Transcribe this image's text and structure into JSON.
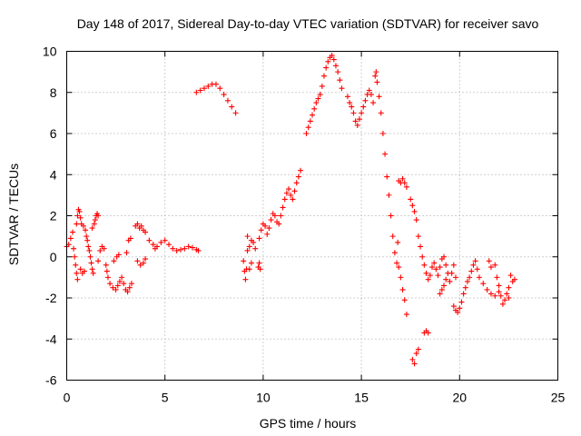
{
  "chart_data": {
    "type": "scatter",
    "title": "Day 148 of 2017, Sidereal Day-to-day VTEC variation (SDTVAR) for receiver savo",
    "xlabel": "GPS time / hours",
    "ylabel": "SDTVAR / TECUs",
    "xlim": [
      0,
      25
    ],
    "ylim": [
      -6,
      10
    ],
    "xticks": [
      0,
      5,
      10,
      15,
      20,
      25
    ],
    "yticks": [
      -6,
      -4,
      -2,
      0,
      2,
      4,
      6,
      8,
      10
    ],
    "grid": true,
    "marker": "+",
    "color": "#ff0000",
    "series": [
      {
        "name": "savo",
        "points": [
          [
            0.0,
            0.5
          ],
          [
            0.1,
            0.6
          ],
          [
            0.2,
            0.9
          ],
          [
            0.3,
            1.2
          ],
          [
            0.35,
            0.4
          ],
          [
            0.4,
            0.0
          ],
          [
            0.45,
            -0.4
          ],
          [
            0.5,
            -0.8
          ],
          [
            0.55,
            -1.1
          ],
          [
            0.5,
            1.6
          ],
          [
            0.55,
            2.0
          ],
          [
            0.6,
            2.3
          ],
          [
            0.65,
            2.2
          ],
          [
            0.7,
            1.9
          ],
          [
            0.75,
            1.6
          ],
          [
            0.7,
            -0.6
          ],
          [
            0.8,
            -0.8
          ],
          [
            0.9,
            -0.7
          ],
          [
            0.85,
            1.5
          ],
          [
            0.95,
            1.3
          ],
          [
            1.0,
            1.0
          ],
          [
            1.05,
            0.8
          ],
          [
            1.1,
            0.5
          ],
          [
            1.15,
            0.3
          ],
          [
            1.2,
            0.0
          ],
          [
            1.25,
            -0.3
          ],
          [
            1.3,
            -0.6
          ],
          [
            1.35,
            -0.8
          ],
          [
            1.3,
            1.4
          ],
          [
            1.4,
            1.6
          ],
          [
            1.45,
            1.8
          ],
          [
            1.5,
            2.0
          ],
          [
            1.55,
            2.1
          ],
          [
            1.6,
            2.0
          ],
          [
            1.6,
            -0.2
          ],
          [
            1.7,
            0.3
          ],
          [
            1.8,
            0.5
          ],
          [
            1.9,
            0.4
          ],
          [
            2.0,
            -0.4
          ],
          [
            2.05,
            -0.7
          ],
          [
            2.1,
            -1.0
          ],
          [
            2.2,
            -1.3
          ],
          [
            2.35,
            -1.5
          ],
          [
            2.5,
            -1.6
          ],
          [
            2.6,
            -1.4
          ],
          [
            2.7,
            -1.2
          ],
          [
            2.8,
            -1.0
          ],
          [
            2.9,
            -1.3
          ],
          [
            3.0,
            -1.6
          ],
          [
            3.1,
            -1.7
          ],
          [
            3.2,
            -1.5
          ],
          [
            3.3,
            -1.3
          ],
          [
            3.05,
            0.2
          ],
          [
            3.15,
            0.8
          ],
          [
            3.25,
            0.9
          ],
          [
            2.4,
            -0.2
          ],
          [
            2.55,
            0.0
          ],
          [
            2.65,
            0.1
          ],
          [
            3.5,
            1.5
          ],
          [
            3.6,
            1.6
          ],
          [
            3.7,
            1.4
          ],
          [
            3.8,
            1.5
          ],
          [
            3.9,
            1.3
          ],
          [
            4.0,
            1.2
          ],
          [
            3.6,
            -0.2
          ],
          [
            3.75,
            -0.4
          ],
          [
            3.9,
            -0.3
          ],
          [
            4.0,
            -0.1
          ],
          [
            4.2,
            0.8
          ],
          [
            4.4,
            0.6
          ],
          [
            4.5,
            0.4
          ],
          [
            4.6,
            0.5
          ],
          [
            4.8,
            0.7
          ],
          [
            5.0,
            0.8
          ],
          [
            5.2,
            0.6
          ],
          [
            5.4,
            0.4
          ],
          [
            5.6,
            0.3
          ],
          [
            5.8,
            0.35
          ],
          [
            6.0,
            0.4
          ],
          [
            6.2,
            0.5
          ],
          [
            6.4,
            0.45
          ],
          [
            6.6,
            0.35
          ],
          [
            6.7,
            0.3
          ],
          [
            6.6,
            8.0
          ],
          [
            6.8,
            8.1
          ],
          [
            7.0,
            8.2
          ],
          [
            7.2,
            8.3
          ],
          [
            7.4,
            8.4
          ],
          [
            7.6,
            8.4
          ],
          [
            7.8,
            8.2
          ],
          [
            8.0,
            7.9
          ],
          [
            8.2,
            7.6
          ],
          [
            8.4,
            7.3
          ],
          [
            8.6,
            7.0
          ],
          [
            9.0,
            -0.2
          ],
          [
            9.05,
            -0.7
          ],
          [
            9.1,
            -1.1
          ],
          [
            9.15,
            -0.6
          ],
          [
            9.2,
            0.3
          ],
          [
            9.3,
            0.5
          ],
          [
            9.4,
            0.8
          ],
          [
            9.5,
            0.7
          ],
          [
            9.6,
            0.4
          ],
          [
            9.3,
            -0.6
          ],
          [
            9.4,
            -0.3
          ],
          [
            9.2,
            1.0
          ],
          [
            9.75,
            -0.5
          ],
          [
            9.8,
            -0.3
          ],
          [
            9.85,
            -0.6
          ],
          [
            9.8,
            0.9
          ],
          [
            9.9,
            1.3
          ],
          [
            10.0,
            1.6
          ],
          [
            10.1,
            1.5
          ],
          [
            10.2,
            1.1
          ],
          [
            10.3,
            1.4
          ],
          [
            10.4,
            1.8
          ],
          [
            10.5,
            2.1
          ],
          [
            10.6,
            2.0
          ],
          [
            10.7,
            1.7
          ],
          [
            10.8,
            1.6
          ],
          [
            10.9,
            2.0
          ],
          [
            11.0,
            2.4
          ],
          [
            11.1,
            2.8
          ],
          [
            11.2,
            3.1
          ],
          [
            11.3,
            3.3
          ],
          [
            11.4,
            3.0
          ],
          [
            11.5,
            2.8
          ],
          [
            11.6,
            3.2
          ],
          [
            11.7,
            3.6
          ],
          [
            11.8,
            3.9
          ],
          [
            11.9,
            4.2
          ],
          [
            12.2,
            6.0
          ],
          [
            12.3,
            6.3
          ],
          [
            12.4,
            6.6
          ],
          [
            12.5,
            6.9
          ],
          [
            12.6,
            7.2
          ],
          [
            12.7,
            7.5
          ],
          [
            12.8,
            7.7
          ],
          [
            12.9,
            7.9
          ],
          [
            13.0,
            8.3
          ],
          [
            13.1,
            8.8
          ],
          [
            13.2,
            9.2
          ],
          [
            13.3,
            9.5
          ],
          [
            13.4,
            9.7
          ],
          [
            13.5,
            9.8
          ],
          [
            13.6,
            9.6
          ],
          [
            13.7,
            9.3
          ],
          [
            13.8,
            9.0
          ],
          [
            13.9,
            8.6
          ],
          [
            14.0,
            8.2
          ],
          [
            14.3,
            7.8
          ],
          [
            14.4,
            7.5
          ],
          [
            14.5,
            7.3
          ],
          [
            14.6,
            7.0
          ],
          [
            14.7,
            6.6
          ],
          [
            14.8,
            6.4
          ],
          [
            14.9,
            6.7
          ],
          [
            15.0,
            7.0
          ],
          [
            15.1,
            7.3
          ],
          [
            15.2,
            7.6
          ],
          [
            15.3,
            7.9
          ],
          [
            15.4,
            8.1
          ],
          [
            15.5,
            7.9
          ],
          [
            15.6,
            7.5
          ],
          [
            15.7,
            8.8
          ],
          [
            15.75,
            9.0
          ],
          [
            15.8,
            8.5
          ],
          [
            15.9,
            7.8
          ],
          [
            16.0,
            7.0
          ],
          [
            16.1,
            6.0
          ],
          [
            16.2,
            5.0
          ],
          [
            16.3,
            3.9
          ],
          [
            16.4,
            3.0
          ],
          [
            16.5,
            2.0
          ],
          [
            16.6,
            1.0
          ],
          [
            16.7,
            0.2
          ],
          [
            16.8,
            -0.3
          ],
          [
            16.85,
            0.7
          ],
          [
            16.9,
            -0.5
          ],
          [
            16.9,
            3.7
          ],
          [
            17.0,
            3.6
          ],
          [
            17.1,
            3.8
          ],
          [
            17.2,
            3.6
          ],
          [
            17.3,
            3.4
          ],
          [
            17.0,
            -1.0
          ],
          [
            17.1,
            -1.6
          ],
          [
            17.2,
            -2.1
          ],
          [
            17.3,
            -2.8
          ],
          [
            17.5,
            2.8
          ],
          [
            17.6,
            2.5
          ],
          [
            17.7,
            2.2
          ],
          [
            17.8,
            1.8
          ],
          [
            17.9,
            1.0
          ],
          [
            18.0,
            0.5
          ],
          [
            18.1,
            0.0
          ],
          [
            18.2,
            -0.4
          ],
          [
            18.3,
            -0.8
          ],
          [
            18.4,
            -1.1
          ],
          [
            18.5,
            -0.9
          ],
          [
            18.6,
            -0.5
          ],
          [
            18.7,
            -0.3
          ],
          [
            18.8,
            -0.6
          ],
          [
            18.9,
            -0.9
          ],
          [
            19.0,
            -0.5
          ],
          [
            19.1,
            -0.1
          ],
          [
            19.2,
            0.0
          ],
          [
            19.3,
            -0.4
          ],
          [
            19.4,
            -0.8
          ],
          [
            17.6,
            -5.0
          ],
          [
            17.7,
            -5.2
          ],
          [
            17.8,
            -4.7
          ],
          [
            17.9,
            -4.5
          ],
          [
            18.2,
            -3.7
          ],
          [
            18.3,
            -3.6
          ],
          [
            18.4,
            -3.7
          ],
          [
            19.0,
            -1.8
          ],
          [
            19.1,
            -1.6
          ],
          [
            19.2,
            -1.4
          ],
          [
            19.3,
            -1.1
          ],
          [
            19.5,
            -1.2
          ],
          [
            19.6,
            -0.8
          ],
          [
            19.7,
            -0.4
          ],
          [
            19.8,
            -1.0
          ],
          [
            19.7,
            -2.4
          ],
          [
            19.8,
            -2.6
          ],
          [
            19.9,
            -2.7
          ],
          [
            20.0,
            -2.5
          ],
          [
            20.1,
            -2.2
          ],
          [
            20.2,
            -1.8
          ],
          [
            20.3,
            -1.5
          ],
          [
            20.4,
            -1.2
          ],
          [
            20.5,
            -1.0
          ],
          [
            20.6,
            -0.7
          ],
          [
            20.7,
            -0.4
          ],
          [
            20.8,
            -0.2
          ],
          [
            20.9,
            -0.6
          ],
          [
            21.0,
            -1.0
          ],
          [
            21.2,
            -1.3
          ],
          [
            21.4,
            -1.6
          ],
          [
            21.6,
            -1.8
          ],
          [
            21.8,
            -1.9
          ],
          [
            22.0,
            -1.7
          ],
          [
            21.5,
            -0.2
          ],
          [
            21.6,
            -0.5
          ],
          [
            21.8,
            -0.4
          ],
          [
            21.9,
            -1.0
          ],
          [
            22.0,
            -1.4
          ],
          [
            22.1,
            -1.9
          ],
          [
            22.2,
            -2.3
          ],
          [
            22.3,
            -2.1
          ],
          [
            22.4,
            -1.8
          ],
          [
            22.5,
            -1.5
          ],
          [
            22.6,
            -0.9
          ],
          [
            22.7,
            -1.2
          ],
          [
            22.8,
            -1.1
          ],
          [
            22.5,
            -2.0
          ]
        ]
      }
    ]
  }
}
